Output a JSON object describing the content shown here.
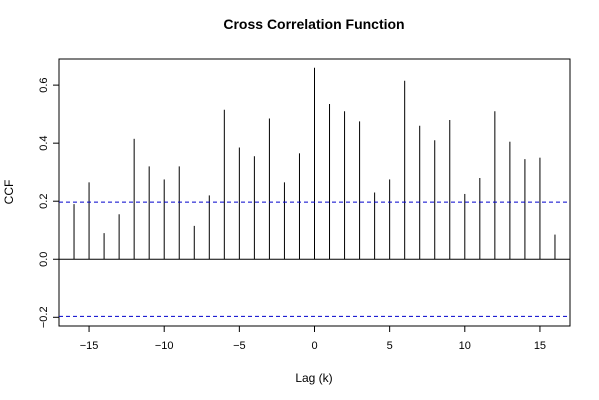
{
  "chart_data": {
    "type": "bar",
    "title": "Cross Correlation Function",
    "xlabel": "Lag (k)",
    "ylabel": "CCF",
    "xlim": [
      -17,
      17
    ],
    "ylim": [
      -0.23,
      0.69
    ],
    "x_ticks": [
      -15,
      -10,
      -5,
      0,
      5,
      10,
      15
    ],
    "x_tick_labels": [
      "−15",
      "−10",
      "−5",
      "0",
      "5",
      "10",
      "15"
    ],
    "y_ticks": [
      -0.2,
      0.0,
      0.2,
      0.4,
      0.6
    ],
    "y_tick_labels": [
      "−0.2",
      "0.0",
      "0.2",
      "0.4",
      "0.6"
    ],
    "confidence_bounds": [
      0.197,
      -0.197
    ],
    "lags": [
      -16,
      -15,
      -14,
      -13,
      -12,
      -11,
      -10,
      -9,
      -8,
      -7,
      -6,
      -5,
      -4,
      -3,
      -2,
      -1,
      0,
      1,
      2,
      3,
      4,
      5,
      6,
      7,
      8,
      9,
      10,
      11,
      12,
      13,
      14,
      15,
      16
    ],
    "values": [
      0.19,
      0.265,
      0.09,
      0.155,
      0.415,
      0.32,
      0.275,
      0.32,
      0.115,
      0.22,
      0.515,
      0.385,
      0.355,
      0.485,
      0.265,
      0.365,
      0.66,
      0.535,
      0.51,
      0.475,
      0.23,
      0.275,
      0.615,
      0.46,
      0.41,
      0.48,
      0.225,
      0.28,
      0.51,
      0.405,
      0.345,
      0.35,
      0.085
    ],
    "colors": {
      "spikes": "#000000",
      "bounds": "#0000cc",
      "zero_line": "#000000"
    },
    "grid": false
  }
}
